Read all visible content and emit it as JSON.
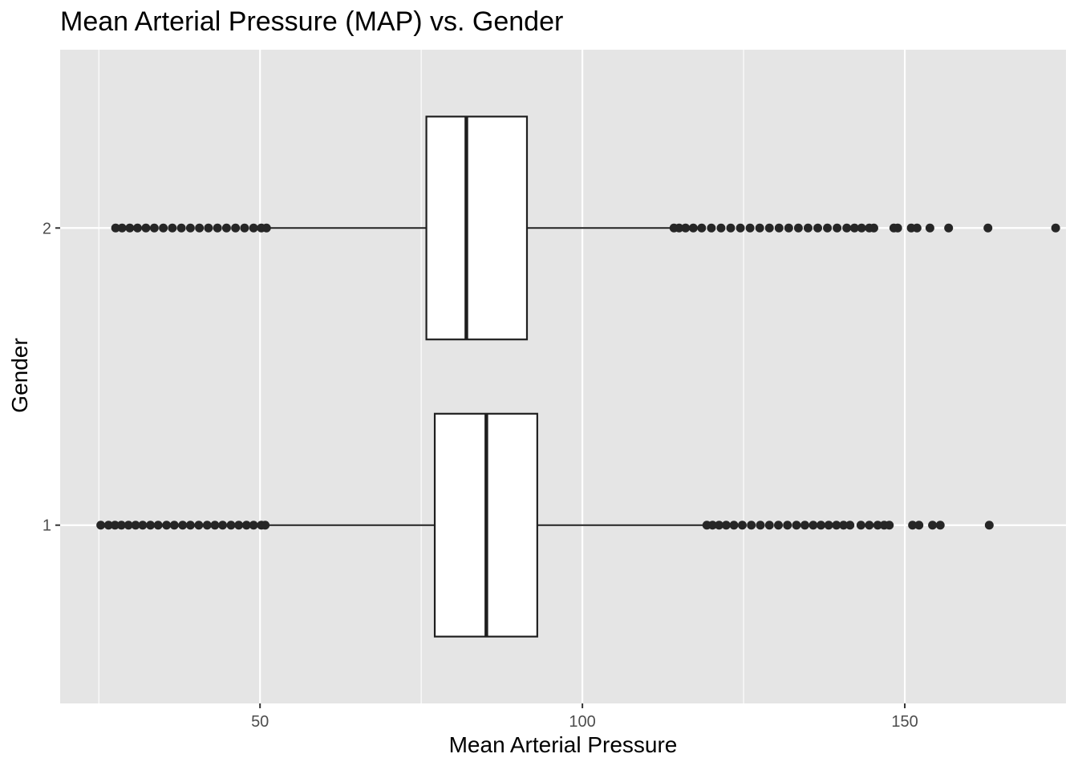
{
  "chart_data": {
    "type": "boxplot",
    "orientation": "horizontal",
    "title": "Mean Arterial Pressure (MAP) vs. Gender",
    "xlabel": "Mean Arterial Pressure",
    "ylabel": "Gender",
    "xlim": [
      19,
      175
    ],
    "x_ticks": [
      50,
      100,
      150
    ],
    "x_tick_labels": [
      "50",
      "100",
      "150"
    ],
    "categories": [
      "1",
      "2"
    ],
    "grid": true,
    "legend": "none",
    "colors": {
      "panel": "#e5e5e5",
      "grid": "#ffffff",
      "box_fill": "#ffffff",
      "box_line": "#1f1f1f",
      "outlier": "#262626"
    },
    "boxes": [
      {
        "category": "1",
        "q1": 77.1,
        "median": 85.1,
        "q3": 93.0,
        "whisker_low": 51.0,
        "whisker_high": 119.0,
        "outliers": [
          25.3,
          26.5,
          27.5,
          28.5,
          29.6,
          30.7,
          31.8,
          33.0,
          34.2,
          35.5,
          36.7,
          38.0,
          39.2,
          40.5,
          41.8,
          43.0,
          44.2,
          45.5,
          46.7,
          47.9,
          49.0,
          50.2,
          50.8,
          119.3,
          120.2,
          121.2,
          122.3,
          123.5,
          124.8,
          126.2,
          127.6,
          129.0,
          130.4,
          131.8,
          133.2,
          134.5,
          135.8,
          137.0,
          138.2,
          139.4,
          140.5,
          141.5,
          143.2,
          144.5,
          145.8,
          146.8,
          147.6,
          151.2,
          152.2,
          154.3,
          155.5,
          163.1
        ]
      },
      {
        "category": "2",
        "q1": 75.8,
        "median": 82.0,
        "q3": 91.4,
        "whisker_low": 51.0,
        "whisker_high": 114.0,
        "outliers": [
          27.6,
          28.6,
          29.8,
          31.0,
          32.3,
          33.6,
          35.0,
          36.4,
          37.8,
          39.2,
          40.6,
          42.0,
          43.4,
          44.8,
          46.2,
          47.6,
          49.0,
          50.2,
          51.0,
          114.2,
          115.0,
          116.0,
          117.2,
          118.5,
          120.0,
          121.5,
          123.0,
          124.5,
          126.0,
          127.5,
          129.0,
          130.5,
          132.0,
          133.5,
          135.0,
          136.5,
          138.0,
          139.5,
          141.0,
          142.2,
          143.3,
          144.5,
          145.2,
          148.3,
          148.9,
          151.0,
          151.9,
          153.9,
          156.8,
          162.9,
          173.4
        ]
      }
    ]
  }
}
